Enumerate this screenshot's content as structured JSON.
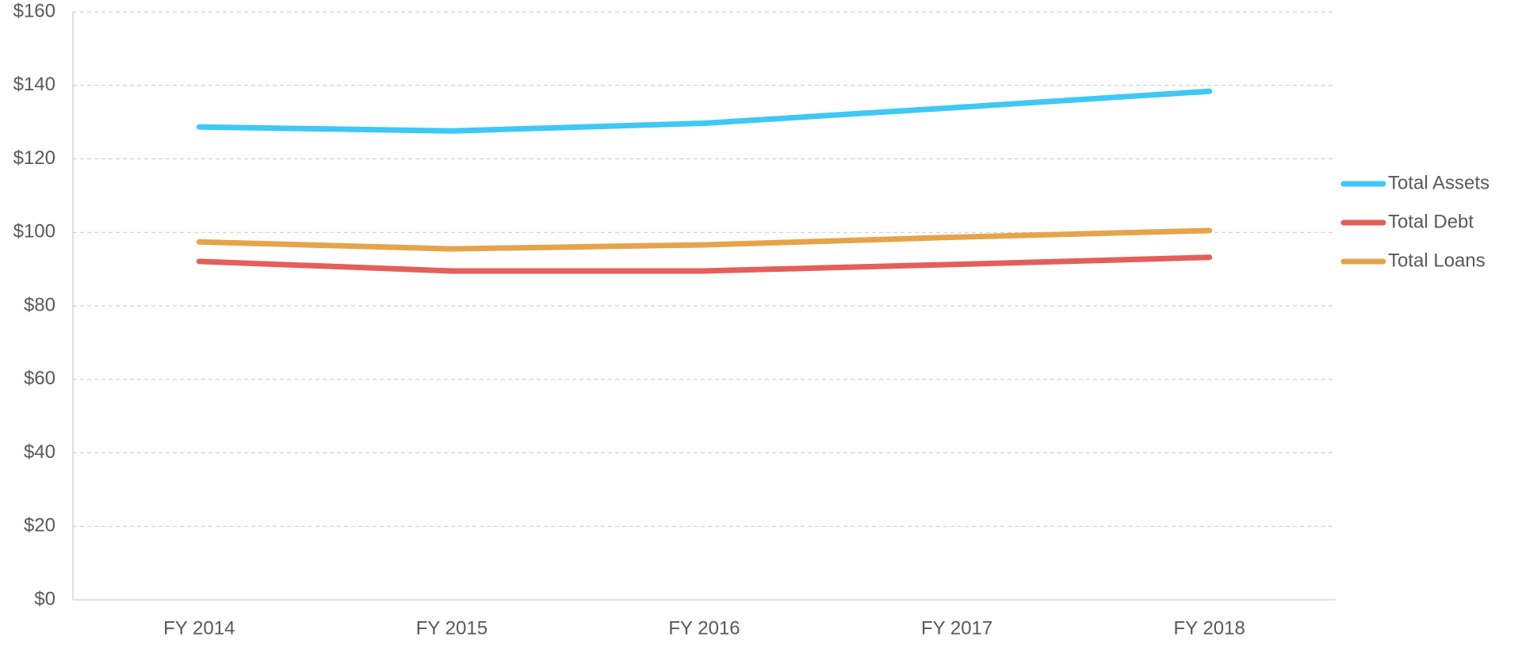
{
  "chart_data": {
    "type": "line",
    "categories": [
      "FY 2014",
      "FY 2015",
      "FY 2016",
      "FY 2017",
      "FY 2018"
    ],
    "series": [
      {
        "name": "Total Assets",
        "color": "#3ec8f6",
        "values": [
          128.7,
          127.6,
          129.7,
          134.0,
          138.4
        ]
      },
      {
        "name": "Total Debt",
        "color": "#e55e5a",
        "values": [
          92.1,
          89.5,
          89.5,
          91.3,
          93.2
        ]
      },
      {
        "name": "Total Loans",
        "color": "#e5a44b",
        "values": [
          97.4,
          95.5,
          96.6,
          98.7,
          100.5
        ]
      }
    ],
    "ylim": [
      0,
      160
    ],
    "yticks": [
      {
        "value": 0,
        "label": "$0"
      },
      {
        "value": 20,
        "label": "$20"
      },
      {
        "value": 40,
        "label": "$40"
      },
      {
        "value": 60,
        "label": "$60"
      },
      {
        "value": 80,
        "label": "$80"
      },
      {
        "value": 100,
        "label": "$100"
      },
      {
        "value": 120,
        "label": "$120"
      },
      {
        "value": 140,
        "label": "$140"
      },
      {
        "value": 160,
        "label": "$160"
      }
    ],
    "grid": true,
    "legend": "right"
  }
}
